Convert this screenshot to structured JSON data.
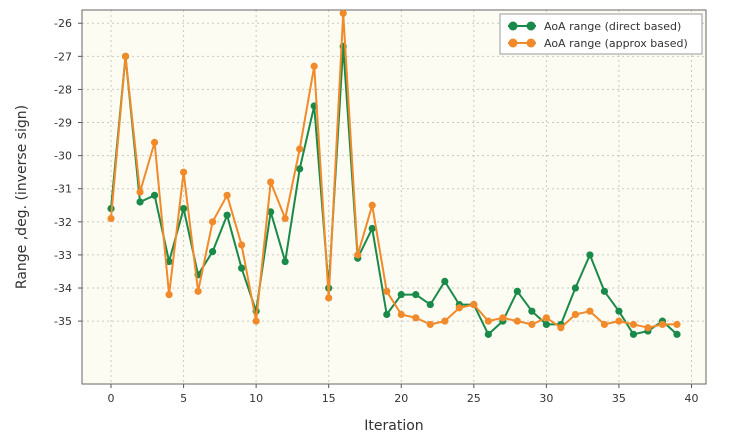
{
  "chart_data": {
    "type": "line",
    "title": "",
    "xlabel": "Iteration",
    "ylabel": "Range ,deg. (inverse sign)",
    "xlim": [
      -2,
      41
    ],
    "ylim": [
      -36.9,
      -25.6
    ],
    "x_ticks": [
      0,
      5,
      10,
      15,
      20,
      25,
      30,
      35,
      40
    ],
    "y_ticks": [
      -26,
      -27,
      -28,
      -29,
      -30,
      -31,
      -32,
      -33,
      -34,
      -35
    ],
    "grid": true,
    "legend_position": "top-right",
    "x": [
      0,
      1,
      2,
      3,
      4,
      5,
      6,
      7,
      8,
      9,
      10,
      11,
      12,
      13,
      14,
      15,
      16,
      17,
      18,
      19,
      20,
      21,
      22,
      23,
      24,
      25,
      26,
      27,
      28,
      29,
      30,
      31,
      32,
      33,
      34,
      35,
      36,
      37,
      38,
      39
    ],
    "series": [
      {
        "name": "AoA range (direct based)",
        "color": "#1a8a4a",
        "values": [
          -31.6,
          -27.0,
          -31.4,
          -31.2,
          -33.2,
          -31.6,
          -33.6,
          -32.9,
          -31.8,
          -33.4,
          -34.7,
          -31.7,
          -33.2,
          -30.4,
          -28.5,
          -34.0,
          -26.7,
          -33.1,
          -32.2,
          -34.8,
          -34.2,
          -34.2,
          -34.5,
          -33.8,
          -34.5,
          -34.5,
          -35.4,
          -35.0,
          -34.1,
          -34.7,
          -35.1,
          -35.1,
          -34.0,
          -33.0,
          -34.1,
          -34.7,
          -35.4,
          -35.3,
          -35.0,
          -35.4
        ]
      },
      {
        "name": "AoA range (approx based)",
        "color": "#f08a2a",
        "values": [
          -31.9,
          -27.0,
          -31.1,
          -29.6,
          -34.2,
          -30.5,
          -34.1,
          -32.0,
          -31.2,
          -32.7,
          -35.0,
          -30.8,
          -31.9,
          -29.8,
          -27.3,
          -34.3,
          -25.7,
          -33.0,
          -31.5,
          -34.1,
          -34.8,
          -34.9,
          -35.1,
          -35.0,
          -34.6,
          -34.5,
          -35.0,
          -34.9,
          -35.0,
          -35.1,
          -34.9,
          -35.2,
          -34.8,
          -34.7,
          -35.1,
          -35.0,
          -35.1,
          -35.2,
          -35.1,
          -35.1
        ]
      }
    ]
  }
}
